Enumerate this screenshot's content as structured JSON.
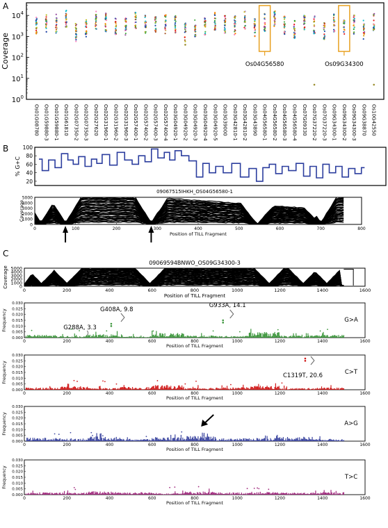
{
  "panels": {
    "a": {
      "letter": "A"
    },
    "b": {
      "letter": "B"
    },
    "c": {
      "letter": "C"
    }
  },
  "colors": {
    "highlight_box": "#e8a020",
    "coverage_trace": "#000000",
    "gc_line": "#2b3d9e",
    "g_to_a": "#3c963c",
    "c_to_t": "#d11919",
    "a_to_g": "#3c46a0",
    "t_to_c": "#a0287d",
    "annotation_grey": "#666666"
  },
  "chart_data": [
    {
      "id": "coverage-strip",
      "type": "scatter",
      "ylabel": "Coverage",
      "yscale": "log",
      "ylim": [
        1,
        40000
      ],
      "yticks": [
        {
          "value": 1,
          "base": "10",
          "exp": "0"
        },
        {
          "value": 10,
          "base": "10",
          "exp": "1"
        },
        {
          "value": 100,
          "base": "10",
          "exp": "2"
        },
        {
          "value": 1000,
          "base": "10",
          "exp": "3"
        },
        {
          "value": 10000,
          "base": "10",
          "exp": "4"
        }
      ],
      "categories": [
        "Os01G08780",
        "Os01G59880-3",
        "Os01G59880-1",
        "Os01G61810",
        "Os02G07350-2",
        "Os02G07350-3",
        "Os02G27620",
        "Os02G31960-1",
        "Os02G31960-2",
        "Os02G31960-3",
        "Os02G57400-1",
        "Os02G57400-2",
        "Os02G57400-3",
        "Os02G57400-4",
        "Os03G04920-1",
        "Os03G04920-2",
        "Os03G04920-3",
        "Os03G04920-4",
        "Os03G04920-5",
        "Os03G39000",
        "Os03G42810-1",
        "Os03G42810-2",
        "Os03G43890",
        "Os04G56580-1",
        "Os04G56580-2",
        "Os04G56580-3",
        "Os04G56580-4",
        "Os07G09330",
        "Os07G37220-2",
        "Os07G37220-3",
        "Os09G34300-1",
        "Os09G34300-2",
        "Os09G34300-3",
        "Os09G38870",
        "Os10G42550"
      ],
      "highlight_categories": [
        "Os04G56580-1",
        "Os09G34300-2"
      ],
      "annotations": [
        "Os04G56580",
        "Os09G34300"
      ],
      "median_coverage": [
        3000,
        4500,
        4000,
        6500,
        1500,
        2600,
        5800,
        4500,
        3500,
        2900,
        5200,
        4000,
        3700,
        3800,
        3500,
        1600,
        2700,
        3300,
        5000,
        3900,
        3300,
        5900,
        2800,
        4900,
        6000,
        3400,
        2200,
        4100,
        3700,
        1600,
        4000,
        2800,
        3600,
        2100,
        4400
      ],
      "outliers": [
        {
          "category": "Os03G04920-2",
          "value": 400
        },
        {
          "category": "Os07G37220-2",
          "value": 5
        },
        {
          "category": "Os10G42550",
          "value": 5
        }
      ]
    },
    {
      "id": "gc-content",
      "type": "line",
      "ylabel": "% G+C",
      "ylim": [
        10,
        100
      ],
      "yticks": [
        "20",
        "40",
        "60",
        "80",
        "100"
      ],
      "x": [
        0,
        15,
        30,
        45,
        60,
        75,
        85,
        100,
        115,
        130,
        140,
        155,
        175,
        190,
        210,
        225,
        240,
        255,
        270,
        285,
        300,
        310,
        325,
        340,
        360,
        375,
        390,
        405,
        420,
        440,
        460,
        480,
        500,
        515,
        530,
        545,
        560,
        575,
        590,
        610,
        625,
        640,
        655,
        670,
        685,
        700,
        715,
        730,
        745,
        760
      ],
      "values": [
        72,
        45,
        70,
        52,
        85,
        70,
        60,
        78,
        55,
        72,
        62,
        83,
        58,
        88,
        70,
        60,
        80,
        66,
        96,
        75,
        88,
        70,
        92,
        80,
        68,
        30,
        62,
        40,
        55,
        40,
        62,
        30,
        50,
        20,
        52,
        60,
        38,
        55,
        45,
        62,
        32,
        55,
        28,
        60,
        40,
        55,
        30,
        50,
        38,
        52
      ]
    },
    {
      "id": "coverage-os04",
      "type": "line",
      "title": "09067515IHKH_OS04G56580-1",
      "xlabel": "Position of TILL Fragment",
      "ylabel": "Coverage",
      "xlim": [
        0,
        800
      ],
      "ylim": [
        0,
        5000
      ],
      "xticks": [
        "0",
        "100",
        "200",
        "300",
        "400",
        "500",
        "600",
        "700",
        "800"
      ],
      "yticks": [
        "0",
        "1000",
        "2000",
        "3000",
        "4000",
        "5000"
      ],
      "arrows_at": [
        75,
        285
      ]
    },
    {
      "id": "coverage-os09",
      "type": "line",
      "title": "09069594BNWO_OS09G34300-3",
      "xlabel": "Position of TILL Fragment",
      "ylabel": "Coverage",
      "xlim": [
        0,
        1600
      ],
      "ylim": [
        0,
        5000
      ],
      "xticks": [
        "0",
        "200",
        "400",
        "600",
        "800",
        "1000",
        "1200",
        "1400",
        "1600"
      ],
      "yticks": [
        "0",
        "1000",
        "2000",
        "3000",
        "4000",
        "5000"
      ]
    },
    {
      "id": "freq-g-to-a",
      "type": "bar",
      "series": [
        {
          "name": "G>A",
          "values": [
            0.0025,
            0.0015,
            0.003,
            0.0012,
            0.004,
            0.002,
            0.0015,
            0.005,
            0.0018,
            0.0025
          ]
        }
      ],
      "xlabel": "Position of TILL Fragment",
      "ylabel": "Frequency",
      "xlim": [
        0,
        1600
      ],
      "ylim": [
        0,
        0.03
      ],
      "yticks": [
        "0.000",
        "0.005",
        "0.010",
        "0.015",
        "0.020",
        "0.025",
        "0.030"
      ],
      "xticks": [
        "0",
        "200",
        "400",
        "600",
        "800",
        "1000",
        "1200",
        "1400",
        "1600"
      ],
      "annotations": [
        {
          "text": "G288A, 3.3",
          "x": 288
        },
        {
          "text": "G408A, 9.8",
          "x": 408,
          "freq": 0.012
        },
        {
          "text": "G933A, 14.1",
          "x": 933,
          "freq": 0.015
        }
      ]
    },
    {
      "id": "freq-c-to-t",
      "type": "bar",
      "series": [
        {
          "name": "C>T",
          "values": [
            0.002,
            0.003,
            0.0015,
            0.0025,
            0.004,
            0.0018,
            0.0022,
            0.0035,
            0.0015,
            0.002
          ]
        }
      ],
      "xlabel": "Position of TILL Fragment",
      "ylabel": "Frequency",
      "xlim": [
        0,
        1600
      ],
      "ylim": [
        0,
        0.03
      ],
      "yticks": [
        "0.000",
        "0.005",
        "0.010",
        "0.015",
        "0.020",
        "0.025",
        "0.030"
      ],
      "xticks": [
        "0",
        "200",
        "400",
        "600",
        "800",
        "1000",
        "1200",
        "1400",
        "1600"
      ],
      "annotations": [
        {
          "text": "C1319T, 20.6",
          "x": 1319,
          "freq": 0.027
        }
      ]
    },
    {
      "id": "freq-a-to-g",
      "type": "bar",
      "series": [
        {
          "name": "A>G",
          "values": [
            0.003,
            0.0025,
            0.004,
            0.002,
            0.0035,
            0.0045,
            0.0025,
            0.003,
            0.004,
            0.002
          ]
        }
      ],
      "xlabel": "Position of TILL Fragment",
      "ylabel": "Frequency",
      "xlim": [
        0,
        1600
      ],
      "ylim": [
        0,
        0.03
      ],
      "yticks": [
        "0.000",
        "0.005",
        "0.010",
        "0.015",
        "0.020",
        "0.025",
        "0.030"
      ],
      "xticks": [
        "0",
        "200",
        "400",
        "600",
        "800",
        "1000",
        "1200",
        "1400",
        "1600"
      ],
      "arrow_at": 830
    },
    {
      "id": "freq-t-to-c",
      "type": "bar",
      "series": [
        {
          "name": "T>C",
          "values": [
            0.002,
            0.0018,
            0.003,
            0.0022,
            0.0015,
            0.0028,
            0.002,
            0.0025,
            0.0018,
            0.0022
          ]
        }
      ],
      "xlabel": "Position of TILL Fragment",
      "ylabel": "Frequency",
      "xlim": [
        0,
        1600
      ],
      "ylim": [
        0,
        0.03
      ],
      "yticks": [
        "0.000",
        "0.005",
        "0.010",
        "0.015",
        "0.020",
        "0.025",
        "0.030"
      ],
      "xticks": [
        "0",
        "200",
        "400",
        "600",
        "800",
        "1000",
        "1200",
        "1400",
        "1600"
      ]
    }
  ]
}
